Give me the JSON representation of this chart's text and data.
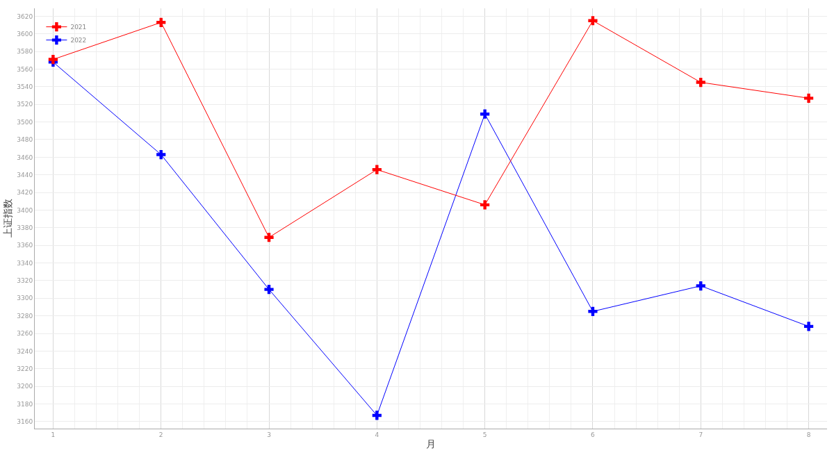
{
  "chart_data": {
    "type": "line",
    "xlabel": "月",
    "ylabel": "上证指数",
    "x": [
      1,
      2,
      3,
      4,
      5,
      6,
      7,
      8
    ],
    "series": [
      {
        "name": "2021",
        "color": "#ff0000",
        "values": [
          3571,
          3613,
          3369,
          3446,
          3406,
          3615,
          3545,
          3527
        ]
      },
      {
        "name": "2022",
        "color": "#0000ff",
        "values": [
          3568,
          3463,
          3310,
          3167,
          3509,
          3285,
          3314,
          3268
        ]
      }
    ],
    "xlim": [
      0.83,
      8.17
    ],
    "xticks": [
      1,
      2,
      3,
      4,
      5,
      6,
      7,
      8
    ],
    "ylim": [
      3152,
      3629
    ],
    "yticks": [
      3160,
      3180,
      3200,
      3220,
      3240,
      3260,
      3280,
      3300,
      3320,
      3340,
      3360,
      3380,
      3400,
      3420,
      3440,
      3460,
      3480,
      3500,
      3520,
      3540,
      3560,
      3580,
      3600,
      3620
    ],
    "grid": true,
    "legend": "top left",
    "marker": "cross",
    "line_style": "solid"
  }
}
